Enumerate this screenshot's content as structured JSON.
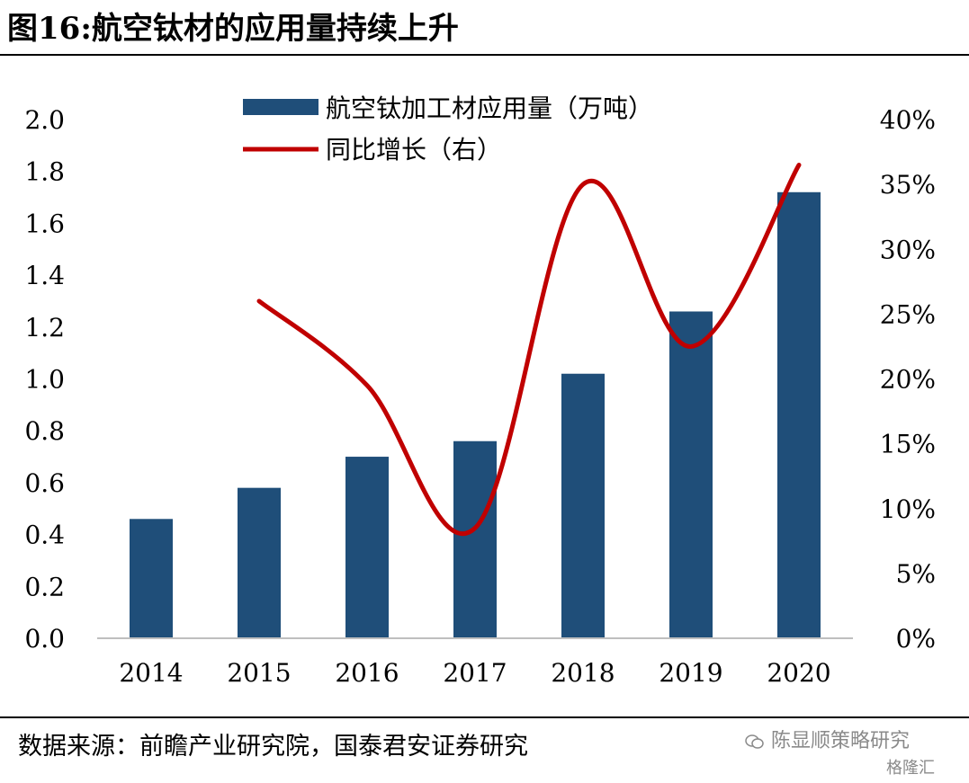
{
  "title": "图16:航空钛材的应用量持续上升",
  "source": "数据来源：前瞻产业研究院，国泰君安证券研究",
  "watermark": {
    "text": "陈显顺策略研究",
    "sub": "格隆汇",
    "icon": "wechat-icon"
  },
  "colors": {
    "bar": "#1f4e79",
    "line": "#c00000",
    "axis": "#bfbfbf"
  },
  "chart_data": {
    "type": "bar",
    "categories": [
      "2014",
      "2015",
      "2016",
      "2017",
      "2018",
      "2019",
      "2020"
    ],
    "series": [
      {
        "name": "航空钛加工材应用量（万吨）",
        "type": "bar",
        "axis": "left",
        "values": [
          0.46,
          0.58,
          0.7,
          0.76,
          1.02,
          1.26,
          1.72
        ]
      },
      {
        "name": "同比增长（右）",
        "type": "line",
        "axis": "right",
        "values": [
          null,
          26,
          19.5,
          8.5,
          35,
          22.5,
          36.5
        ]
      }
    ],
    "y_left": {
      "range": [
        0,
        2.0
      ],
      "ticks": [
        "0.0",
        "0.2",
        "0.4",
        "0.6",
        "0.8",
        "1.0",
        "1.2",
        "1.4",
        "1.6",
        "1.8",
        "2.0"
      ]
    },
    "y_right": {
      "range": [
        0,
        40
      ],
      "ticks": [
        "0%",
        "5%",
        "10%",
        "15%",
        "20%",
        "25%",
        "30%",
        "35%",
        "40%"
      ]
    },
    "grid": false,
    "legend_position": "top"
  }
}
